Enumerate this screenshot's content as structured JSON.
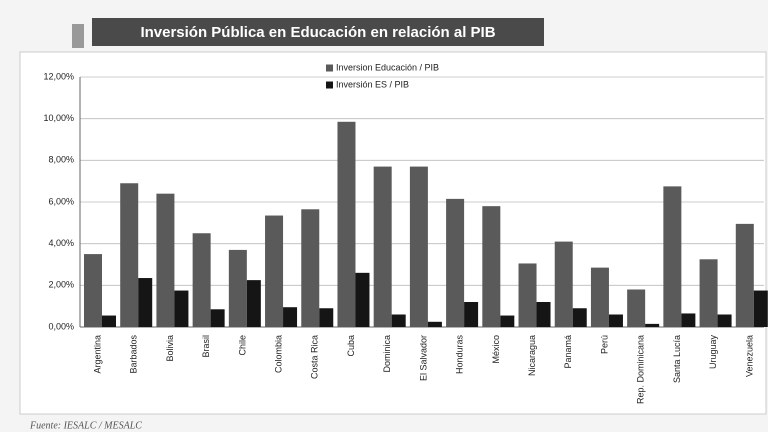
{
  "chart_data": {
    "type": "bar",
    "title": "Inversión Pública en Educación en relación al PIB",
    "source": "Fuente: IESALC / MESALC",
    "categories": [
      "Argentina",
      "Barbados",
      "Bolivia",
      "Brasil",
      "Chile",
      "Colombia",
      "Costa Rica",
      "Cuba",
      "Dominica",
      "El Salvador",
      "Honduras",
      "México",
      "Nicaragua",
      "Panamá",
      "Perú",
      "Rep. Dominicana",
      "Santa Lucía",
      "Uruguay",
      "Venezuela"
    ],
    "series": [
      {
        "name": "Inversion Educación / PIB",
        "color": "#5a5a5a",
        "values": [
          3.5,
          6.9,
          6.4,
          4.5,
          3.7,
          5.35,
          5.65,
          9.85,
          7.7,
          7.7,
          6.15,
          5.8,
          3.05,
          4.1,
          2.85,
          1.8,
          6.75,
          3.25,
          4.95
        ]
      },
      {
        "name": "Inversión ES / PIB",
        "color": "#151515",
        "values": [
          0.55,
          2.35,
          1.75,
          0.85,
          2.25,
          0.95,
          0.9,
          2.6,
          0.6,
          0.25,
          1.2,
          0.55,
          1.2,
          0.9,
          0.6,
          0.15,
          0.65,
          0.6,
          1.75
        ]
      }
    ],
    "ylim": [
      0,
      12
    ],
    "yticks": [
      {
        "value": 0,
        "label": "0,00%"
      },
      {
        "value": 2,
        "label": "2,00%"
      },
      {
        "value": 4,
        "label": "4,00%"
      },
      {
        "value": 6,
        "label": "6,00%"
      },
      {
        "value": 8,
        "label": "8,00%"
      },
      {
        "value": 10,
        "label": "10,00%"
      },
      {
        "value": 12,
        "label": "12,00%"
      }
    ],
    "grid": true
  }
}
